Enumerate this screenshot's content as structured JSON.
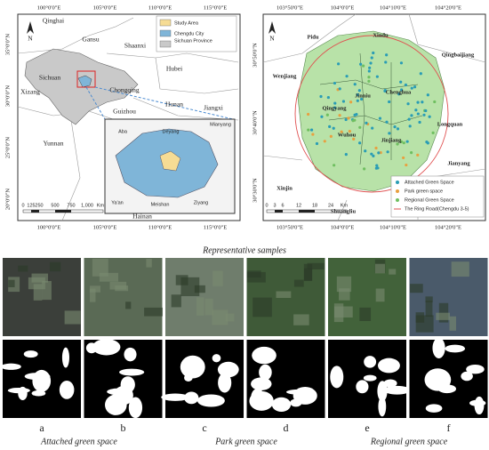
{
  "left_map": {
    "lon_labels": [
      "100°0'0\"E",
      "105°0'0\"E",
      "110°0'0\"E",
      "115°0'0\"E"
    ],
    "lat_labels": [
      "35°0'0\"N",
      "30°0'0\"N",
      "25°0'0\"N",
      "20°0'0\"N"
    ],
    "places": [
      "Qinghai",
      "Gansu",
      "Shaanxi",
      "Hubei",
      "Sichuan",
      "Chongqing",
      "Hunan",
      "Xizang",
      "Guizhou",
      "Jiangxi",
      "Yunnan",
      "Hainan"
    ],
    "legend": [
      "Study Area",
      "Chengdu City",
      "Sichuan Province"
    ],
    "scale": [
      "0",
      "125",
      "250",
      "500",
      "750",
      "1,000",
      "Km"
    ],
    "inset_places": [
      "Aba",
      "Deyang",
      "Mianyang",
      "Ya'an",
      "Meishan",
      "Ziyang"
    ],
    "north": "N"
  },
  "right_map": {
    "lon_labels": [
      "103°50'0\"E",
      "104°0'0\"E",
      "104°10'0\"E",
      "104°20'0\"E"
    ],
    "lat_labels": [
      "30°50'0\"N",
      "30°40'0\"N",
      "30°30'0\"N"
    ],
    "places": [
      "Pidu",
      "Xindu",
      "Qingbaijiang",
      "Wenjiang",
      "Jinniu",
      "Chenghua",
      "Qingyang",
      "Longquan",
      "Wuhou",
      "Jinjiang",
      "Xinjin",
      "Shuangliu",
      "Jianyang"
    ],
    "legend": [
      "Attached Green Space",
      "Park green space",
      "Regional Green Space",
      "The Ring Road(Chengdu 3-5)"
    ],
    "scale": [
      "0",
      "3",
      "6",
      "12",
      "18",
      "24",
      "Km"
    ],
    "north": "N"
  },
  "samples": {
    "title": "Representative samples",
    "letters": [
      "a",
      "b",
      "c",
      "d",
      "e",
      "f"
    ],
    "groups": [
      "Attached green space",
      "Park green space",
      "Regional green space"
    ]
  }
}
